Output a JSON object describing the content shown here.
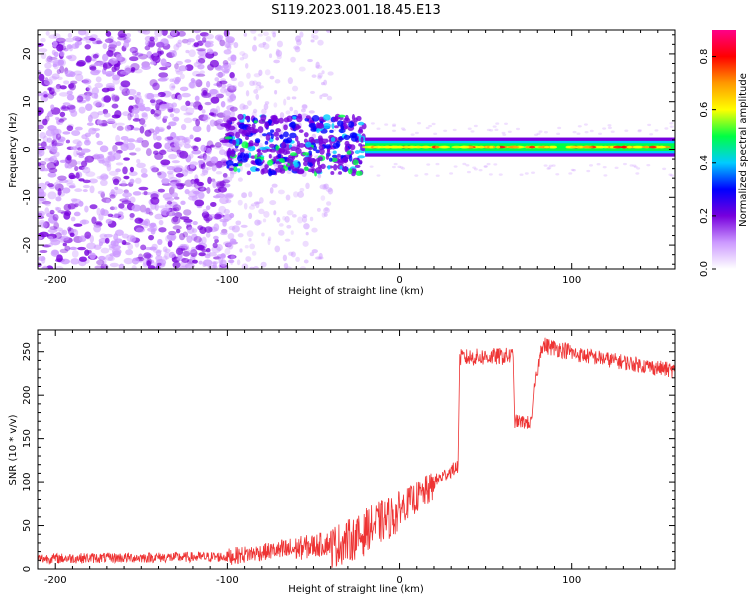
{
  "title": "S119.2023.001.18.45.E13",
  "chart_data": [
    {
      "type": "heatmap",
      "xlabel": "Height of straight line (km)",
      "ylabel": "Frequency (Hz)",
      "xlim": [
        -210,
        160
      ],
      "ylim": [
        -25,
        25
      ],
      "xticks": [
        -200,
        -100,
        0,
        100
      ],
      "yticks": [
        -20,
        -10,
        0,
        10,
        20
      ],
      "colorbar": {
        "label": "Normalized spectral amplitude",
        "range": [
          0,
          0.9
        ],
        "ticks": [
          0.0,
          0.2,
          0.4,
          0.6,
          0.8
        ],
        "colors": [
          "#ffffff",
          "#cc99ff",
          "#7700dd",
          "#0000ff",
          "#00ccff",
          "#00ff44",
          "#ffff00",
          "#ff9900",
          "#ff0000",
          "#ff0088"
        ]
      },
      "features": [
        {
          "desc": "diffuse noise region",
          "x_range": [
            -210,
            -100
          ],
          "freq_range": [
            -25,
            25
          ]
        },
        {
          "desc": "turbulent signal onset",
          "x_range": [
            -100,
            -20
          ],
          "freq_range": [
            -5,
            7
          ]
        },
        {
          "desc": "narrow tone",
          "x_range": [
            -20,
            160
          ],
          "center_freq": 0.5,
          "half_width": 2
        }
      ]
    },
    {
      "type": "line",
      "xlabel": "Height of straight line (km)",
      "ylabel": "SNR (10 * v/v)",
      "xlim": [
        -210,
        160
      ],
      "ylim": [
        0,
        275
      ],
      "xticks": [
        -200,
        -100,
        0,
        100
      ],
      "yticks": [
        0,
        50,
        100,
        150,
        200,
        250
      ],
      "color": "#ee3333",
      "segments": [
        {
          "x": [
            -210,
            -100
          ],
          "y": [
            12,
            14
          ],
          "noise": 6
        },
        {
          "x": [
            -100,
            -70
          ],
          "y": [
            14,
            22
          ],
          "noise": 10
        },
        {
          "x": [
            -70,
            -40
          ],
          "y": [
            20,
            30
          ],
          "noise": 14
        },
        {
          "x": [
            -40,
            -20
          ],
          "y": [
            25,
            40
          ],
          "noise": 25
        },
        {
          "x": [
            -20,
            0
          ],
          "y": [
            45,
            65
          ],
          "noise": 25
        },
        {
          "x": [
            0,
            20
          ],
          "y": [
            70,
            95
          ],
          "noise": 18
        },
        {
          "x": [
            20,
            34
          ],
          "y": [
            100,
            118
          ],
          "noise": 8
        },
        {
          "x": [
            35,
            66
          ],
          "y": [
            243,
            245
          ],
          "noise": 10
        },
        {
          "x": [
            67,
            77
          ],
          "y": [
            170,
            168
          ],
          "noise": 8
        },
        {
          "x": [
            78,
            82
          ],
          "y": [
            205,
            250
          ],
          "noise": 8
        },
        {
          "x": [
            82,
            100
          ],
          "y": [
            258,
            250
          ],
          "noise": 10
        },
        {
          "x": [
            100,
            160
          ],
          "y": [
            248,
            228
          ],
          "noise": 9
        }
      ]
    }
  ]
}
